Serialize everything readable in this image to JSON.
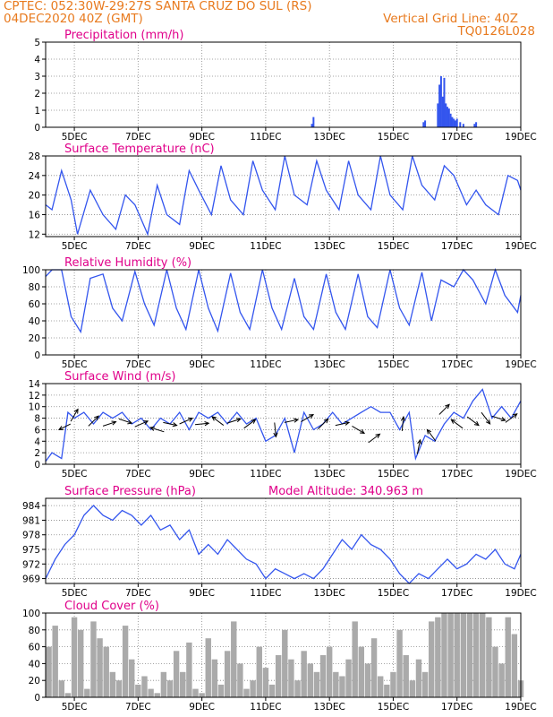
{
  "header": {
    "line1": "CPTEC:   052:30W-29:27S   SANTA CRUZ DO SUL (RS)",
    "line2_left": "04DEC2020 40Z (GMT)",
    "line2_right": "Vertical Grid Line: 40Z",
    "line3_right": "TQ0126L028"
  },
  "colors": {
    "title": "#e0008a",
    "header": "#e87a1e",
    "series": "#3355ee",
    "cloud": "#aaaaaa",
    "wind_arrow": "#000000"
  },
  "x_axis": {
    "range_days": [
      4.1,
      19.0
    ],
    "ticks": [
      {
        "day": 5,
        "label": "5DEC"
      },
      {
        "day": 7,
        "label": "7DEC"
      },
      {
        "day": 9,
        "label": "9DEC"
      },
      {
        "day": 11,
        "label": "11DEC"
      },
      {
        "day": 13,
        "label": "13DEC"
      },
      {
        "day": 15,
        "label": "15DEC"
      },
      {
        "day": 17,
        "label": "17DEC"
      },
      {
        "day": 19,
        "label": "19DEC"
      }
    ]
  },
  "chart_data": [
    {
      "type": "bar",
      "title": "Precipitation (mm/h)",
      "ylim": [
        0,
        5
      ],
      "yticks": [
        "0",
        "1",
        "2",
        "3",
        "4",
        "5"
      ],
      "x": [
        12.45,
        12.5,
        15.95,
        16.0,
        16.4,
        16.45,
        16.5,
        16.55,
        16.6,
        16.65,
        16.7,
        16.75,
        16.8,
        16.85,
        16.9,
        16.95,
        17.0,
        17.1,
        17.2,
        17.55,
        17.6
      ],
      "values": [
        0.2,
        0.6,
        0.3,
        0.4,
        1.4,
        2.5,
        3.0,
        1.8,
        2.9,
        1.4,
        1.2,
        1.1,
        0.8,
        0.6,
        0.5,
        0.4,
        0.5,
        0.3,
        0.2,
        0.2,
        0.3
      ]
    },
    {
      "type": "line",
      "title": "Surface Temperature (nC)",
      "ylim": [
        11.5,
        28
      ],
      "yticks": [
        "12",
        "16",
        "20",
        "24",
        "28"
      ],
      "x": [
        4.1,
        4.3,
        4.6,
        4.9,
        5.1,
        5.5,
        5.9,
        6.3,
        6.6,
        6.9,
        7.3,
        7.6,
        7.9,
        8.3,
        8.6,
        8.9,
        9.3,
        9.6,
        9.9,
        10.3,
        10.6,
        10.9,
        11.3,
        11.6,
        11.9,
        12.3,
        12.6,
        12.9,
        13.3,
        13.6,
        13.9,
        14.3,
        14.6,
        14.9,
        15.3,
        15.6,
        15.9,
        16.3,
        16.6,
        16.9,
        17.3,
        17.6,
        17.9,
        18.3,
        18.6,
        18.9,
        19.0
      ],
      "values": [
        18,
        17,
        25,
        19,
        12,
        21,
        16,
        13,
        20,
        18,
        12,
        22,
        16,
        14,
        25,
        21,
        16,
        26,
        19,
        16,
        27,
        21,
        17,
        28,
        20,
        18,
        27,
        21,
        17,
        27,
        20,
        17,
        28,
        20,
        17,
        28,
        22,
        19,
        26,
        24,
        18,
        21,
        18,
        16,
        24,
        23,
        21
      ]
    },
    {
      "type": "line",
      "title": "Relative Humidity (%)",
      "ylim": [
        0,
        100
      ],
      "yticks": [
        "0",
        "20",
        "40",
        "60",
        "80",
        "100"
      ],
      "x": [
        4.1,
        4.3,
        4.6,
        4.9,
        5.2,
        5.5,
        5.9,
        6.2,
        6.5,
        6.9,
        7.2,
        7.5,
        7.9,
        8.2,
        8.5,
        8.9,
        9.2,
        9.5,
        9.9,
        10.2,
        10.5,
        10.9,
        11.2,
        11.5,
        11.9,
        12.2,
        12.5,
        12.9,
        13.2,
        13.5,
        13.9,
        14.2,
        14.5,
        14.9,
        15.2,
        15.5,
        15.9,
        16.2,
        16.5,
        16.9,
        17.2,
        17.5,
        17.9,
        18.2,
        18.5,
        18.9,
        19.0
      ],
      "values": [
        92,
        100,
        100,
        45,
        27,
        90,
        95,
        55,
        40,
        98,
        60,
        35,
        100,
        55,
        30,
        100,
        55,
        28,
        96,
        50,
        30,
        100,
        55,
        30,
        90,
        45,
        30,
        95,
        50,
        30,
        95,
        45,
        32,
        100,
        55,
        35,
        97,
        40,
        88,
        80,
        100,
        88,
        60,
        100,
        70,
        50,
        70
      ]
    },
    {
      "type": "line",
      "title": "Surface Wind (m/s)",
      "ylim": [
        0,
        14
      ],
      "yticks": [
        "0",
        "2",
        "4",
        "6",
        "8",
        "10",
        "12",
        "14"
      ],
      "x": [
        4.1,
        4.3,
        4.6,
        4.8,
        5.0,
        5.3,
        5.6,
        5.9,
        6.2,
        6.5,
        6.8,
        7.1,
        7.4,
        7.7,
        8.0,
        8.3,
        8.6,
        8.9,
        9.2,
        9.5,
        9.8,
        10.1,
        10.4,
        10.7,
        11.0,
        11.3,
        11.6,
        11.9,
        12.2,
        12.5,
        12.8,
        13.1,
        13.4,
        13.7,
        14.0,
        14.3,
        14.6,
        14.9,
        15.2,
        15.5,
        15.7,
        16.0,
        16.3,
        16.6,
        16.9,
        17.2,
        17.5,
        17.8,
        18.1,
        18.4,
        18.7,
        19.0
      ],
      "values": [
        0.5,
        2,
        1,
        9,
        8,
        9,
        7,
        9,
        8,
        9,
        7,
        8,
        6,
        8,
        7,
        9,
        6,
        9,
        8,
        9,
        7,
        9,
        7,
        8,
        4,
        5,
        8,
        2,
        9,
        6,
        7,
        9,
        7,
        8,
        9,
        10,
        9,
        9,
        6,
        9,
        1,
        5,
        4,
        7,
        9,
        8,
        11,
        13,
        8,
        10,
        8,
        11
      ]
    },
    {
      "type": "line",
      "title": "Surface Pressure (hPa)",
      "annotation": "Model Altitude: 340.963 m",
      "ylim": [
        968,
        985.5
      ],
      "yticks": [
        "969",
        "972",
        "975",
        "978",
        "981",
        "984"
      ],
      "x": [
        4.1,
        4.4,
        4.7,
        5.0,
        5.3,
        5.6,
        5.9,
        6.2,
        6.5,
        6.8,
        7.1,
        7.4,
        7.7,
        8.0,
        8.3,
        8.6,
        8.9,
        9.2,
        9.5,
        9.8,
        10.1,
        10.4,
        10.7,
        11.0,
        11.3,
        11.6,
        11.9,
        12.2,
        12.5,
        12.8,
        13.1,
        13.4,
        13.7,
        14.0,
        14.3,
        14.6,
        14.9,
        15.2,
        15.5,
        15.8,
        16.1,
        16.4,
        16.7,
        17.0,
        17.3,
        17.6,
        17.9,
        18.2,
        18.5,
        18.8,
        19.0
      ],
      "values": [
        969,
        973,
        976,
        978,
        982,
        984,
        982,
        981,
        983,
        982,
        980,
        982,
        979,
        980,
        977,
        979,
        974,
        976,
        974,
        977,
        975,
        973,
        972,
        969,
        971,
        970,
        969,
        970,
        969,
        971,
        974,
        977,
        975,
        978,
        976,
        975,
        973,
        970,
        968,
        970,
        969,
        971,
        973,
        971,
        972,
        974,
        973,
        975,
        972,
        971,
        974
      ]
    },
    {
      "type": "bar",
      "title": "Cloud Cover (%)",
      "ylim": [
        0,
        100
      ],
      "yticks": [
        "0",
        "20",
        "40",
        "60",
        "80",
        "100"
      ],
      "x": [
        4.2,
        4.4,
        4.6,
        4.8,
        5.0,
        5.2,
        5.4,
        5.6,
        5.8,
        6.0,
        6.2,
        6.4,
        6.6,
        6.8,
        7.0,
        7.2,
        7.4,
        7.6,
        7.8,
        8.0,
        8.2,
        8.4,
        8.6,
        8.8,
        9.0,
        9.2,
        9.4,
        9.6,
        9.8,
        10.0,
        10.2,
        10.4,
        10.6,
        10.8,
        11.0,
        11.2,
        11.4,
        11.6,
        11.8,
        12.0,
        12.2,
        12.4,
        12.6,
        12.8,
        13.0,
        13.2,
        13.4,
        13.6,
        13.8,
        14.0,
        14.2,
        14.4,
        14.6,
        14.8,
        15.0,
        15.2,
        15.4,
        15.6,
        15.8,
        16.0,
        16.2,
        16.4,
        16.6,
        16.8,
        17.0,
        17.2,
        17.4,
        17.6,
        17.8,
        18.0,
        18.2,
        18.4,
        18.6,
        18.8,
        19.0
      ],
      "values": [
        60,
        85,
        20,
        5,
        95,
        80,
        10,
        90,
        70,
        60,
        30,
        20,
        85,
        45,
        15,
        25,
        10,
        5,
        30,
        20,
        55,
        30,
        65,
        10,
        5,
        70,
        45,
        15,
        55,
        90,
        40,
        10,
        20,
        60,
        35,
        15,
        50,
        80,
        45,
        20,
        55,
        40,
        30,
        50,
        60,
        30,
        25,
        45,
        90,
        60,
        40,
        70,
        25,
        15,
        30,
        80,
        50,
        20,
        45,
        30,
        90,
        95,
        100,
        100,
        100,
        100,
        100,
        100,
        100,
        95,
        60,
        40,
        95,
        75,
        20
      ]
    }
  ],
  "wind_vectors": [
    {
      "day": 4.7,
      "speed": 6.5,
      "u": -0.8,
      "v": -0.4
    },
    {
      "day": 5.0,
      "speed": 8.5,
      "u": 0.5,
      "v": 0.85
    },
    {
      "day": 5.6,
      "speed": 7.5,
      "u": 0.7,
      "v": 0.7
    },
    {
      "day": 6.1,
      "speed": 7.0,
      "u": 0.9,
      "v": 0.3
    },
    {
      "day": 6.6,
      "speed": 7.5,
      "u": 0.9,
      "v": -0.3
    },
    {
      "day": 7.1,
      "speed": 7.0,
      "u": 0.9,
      "v": 0.4
    },
    {
      "day": 7.6,
      "speed": 6.0,
      "u": -0.95,
      "v": 0.3
    },
    {
      "day": 8.0,
      "speed": 7.0,
      "u": 0.95,
      "v": -0.2
    },
    {
      "day": 8.5,
      "speed": 7.5,
      "u": 0.9,
      "v": 0.4
    },
    {
      "day": 9.0,
      "speed": 7.0,
      "u": 0.95,
      "v": 0.1
    },
    {
      "day": 9.5,
      "speed": 7.5,
      "u": -0.8,
      "v": 0.6
    },
    {
      "day": 10.0,
      "speed": 7.5,
      "u": 0.95,
      "v": 0.3
    },
    {
      "day": 10.5,
      "speed": 7.0,
      "u": 0.8,
      "v": 0.6
    },
    {
      "day": 11.3,
      "speed": 6.0,
      "u": 0.1,
      "v": -0.99
    },
    {
      "day": 11.8,
      "speed": 7.5,
      "u": 0.95,
      "v": 0.2
    },
    {
      "day": 12.3,
      "speed": 8.0,
      "u": 0.85,
      "v": 0.5
    },
    {
      "day": 12.8,
      "speed": 7.0,
      "u": 0.7,
      "v": 0.7
    },
    {
      "day": 13.4,
      "speed": 7.0,
      "u": 0.95,
      "v": 0.2
    },
    {
      "day": 13.9,
      "speed": 6.0,
      "u": 0.85,
      "v": -0.5
    },
    {
      "day": 14.4,
      "speed": 4.5,
      "u": 0.8,
      "v": 0.6
    },
    {
      "day": 15.3,
      "speed": 7.0,
      "u": 0.1,
      "v": 0.99
    },
    {
      "day": 15.8,
      "speed": 3.0,
      "u": 0.2,
      "v": 0.98
    },
    {
      "day": 16.2,
      "speed": 5.0,
      "u": -0.6,
      "v": 0.8
    },
    {
      "day": 16.6,
      "speed": 9.5,
      "u": 0.7,
      "v": 0.7
    },
    {
      "day": 17.0,
      "speed": 7.0,
      "u": -0.8,
      "v": 0.6
    },
    {
      "day": 17.5,
      "speed": 7.5,
      "u": 0.8,
      "v": -0.6
    },
    {
      "day": 17.9,
      "speed": 8.0,
      "u": 0.6,
      "v": -0.8
    },
    {
      "day": 18.3,
      "speed": 8.0,
      "u": 0.95,
      "v": -0.3
    },
    {
      "day": 18.7,
      "speed": 8.0,
      "u": 0.8,
      "v": 0.6
    }
  ]
}
